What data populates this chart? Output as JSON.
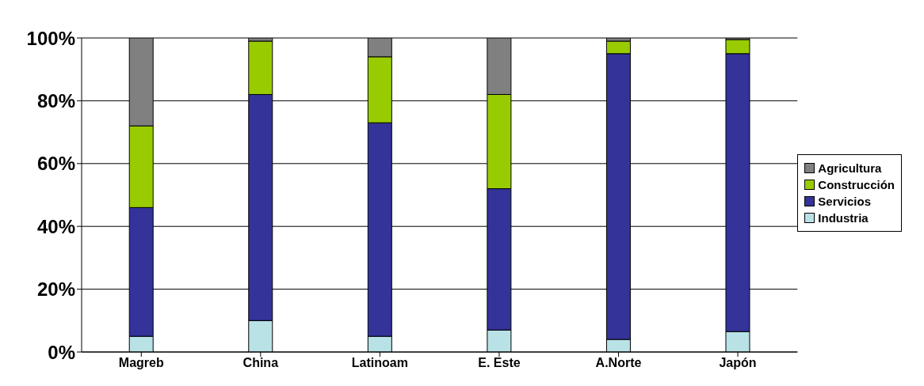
{
  "chart_data": {
    "type": "bar",
    "stacked": true,
    "categories": [
      "Magreb",
      "China",
      "Latinoam",
      "E. Este",
      "A.Norte",
      "Japón"
    ],
    "series": [
      {
        "name": "Industria",
        "color": "#b8e2e6",
        "values": [
          5,
          10,
          5,
          7,
          4,
          6.5
        ]
      },
      {
        "name": "Servicios",
        "color": "#333399",
        "values": [
          41,
          72,
          68,
          45,
          91,
          88.5
        ]
      },
      {
        "name": "Construcción",
        "color": "#99cc00",
        "values": [
          26,
          17,
          21,
          30,
          4,
          4.5
        ]
      },
      {
        "name": "Agricultura",
        "color": "#808080",
        "values": [
          28,
          1,
          6,
          18,
          1,
          0.5
        ]
      }
    ],
    "ylim": [
      0,
      100
    ],
    "yticks": [
      {
        "value": 0,
        "label": "0%"
      },
      {
        "value": 20,
        "label": "20%"
      },
      {
        "value": 40,
        "label": "40%"
      },
      {
        "value": 60,
        "label": "60%"
      },
      {
        "value": 80,
        "label": "80%"
      },
      {
        "value": 100,
        "label": "100%"
      }
    ],
    "grid": "y",
    "legend": "right"
  }
}
